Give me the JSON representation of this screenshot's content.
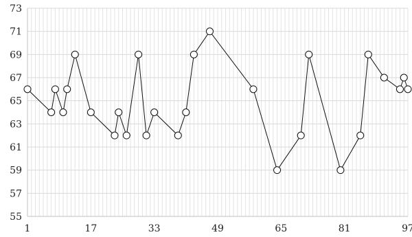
{
  "chart_data": {
    "type": "line",
    "title": "",
    "xlabel": "",
    "ylabel": "",
    "xlim": [
      1,
      97
    ],
    "ylim": [
      55,
      73
    ],
    "yticks": [
      55,
      57,
      59,
      61,
      63,
      65,
      67,
      69,
      71,
      73
    ],
    "xticks": [
      1,
      17,
      33,
      49,
      65,
      81,
      97
    ],
    "grid": true,
    "legend": "none",
    "colors": {
      "line": "#111111",
      "grid": "#d9d9d9",
      "marker_fill": "#ffffff"
    },
    "marker": "circle",
    "series": [
      {
        "points": [
          {
            "x": 1,
            "y": 66
          },
          {
            "x": 7,
            "y": 64
          },
          {
            "x": 8,
            "y": 66
          },
          {
            "x": 10,
            "y": 64
          },
          {
            "x": 11,
            "y": 66
          },
          {
            "x": 13,
            "y": 69
          },
          {
            "x": 17,
            "y": 64
          },
          {
            "x": 23,
            "y": 62
          },
          {
            "x": 24,
            "y": 64
          },
          {
            "x": 26,
            "y": 62
          },
          {
            "x": 29,
            "y": 69
          },
          {
            "x": 31,
            "y": 62
          },
          {
            "x": 33,
            "y": 64
          },
          {
            "x": 39,
            "y": 62
          },
          {
            "x": 41,
            "y": 64
          },
          {
            "x": 43,
            "y": 69
          },
          {
            "x": 47,
            "y": 71
          },
          {
            "x": 58,
            "y": 66
          },
          {
            "x": 64,
            "y": 59
          },
          {
            "x": 70,
            "y": 62
          },
          {
            "x": 72,
            "y": 69
          },
          {
            "x": 80,
            "y": 59
          },
          {
            "x": 85,
            "y": 62
          },
          {
            "x": 87,
            "y": 69
          },
          {
            "x": 91,
            "y": 67
          },
          {
            "x": 95,
            "y": 66
          },
          {
            "x": 96,
            "y": 67
          },
          {
            "x": 97,
            "y": 66
          }
        ]
      }
    ]
  }
}
